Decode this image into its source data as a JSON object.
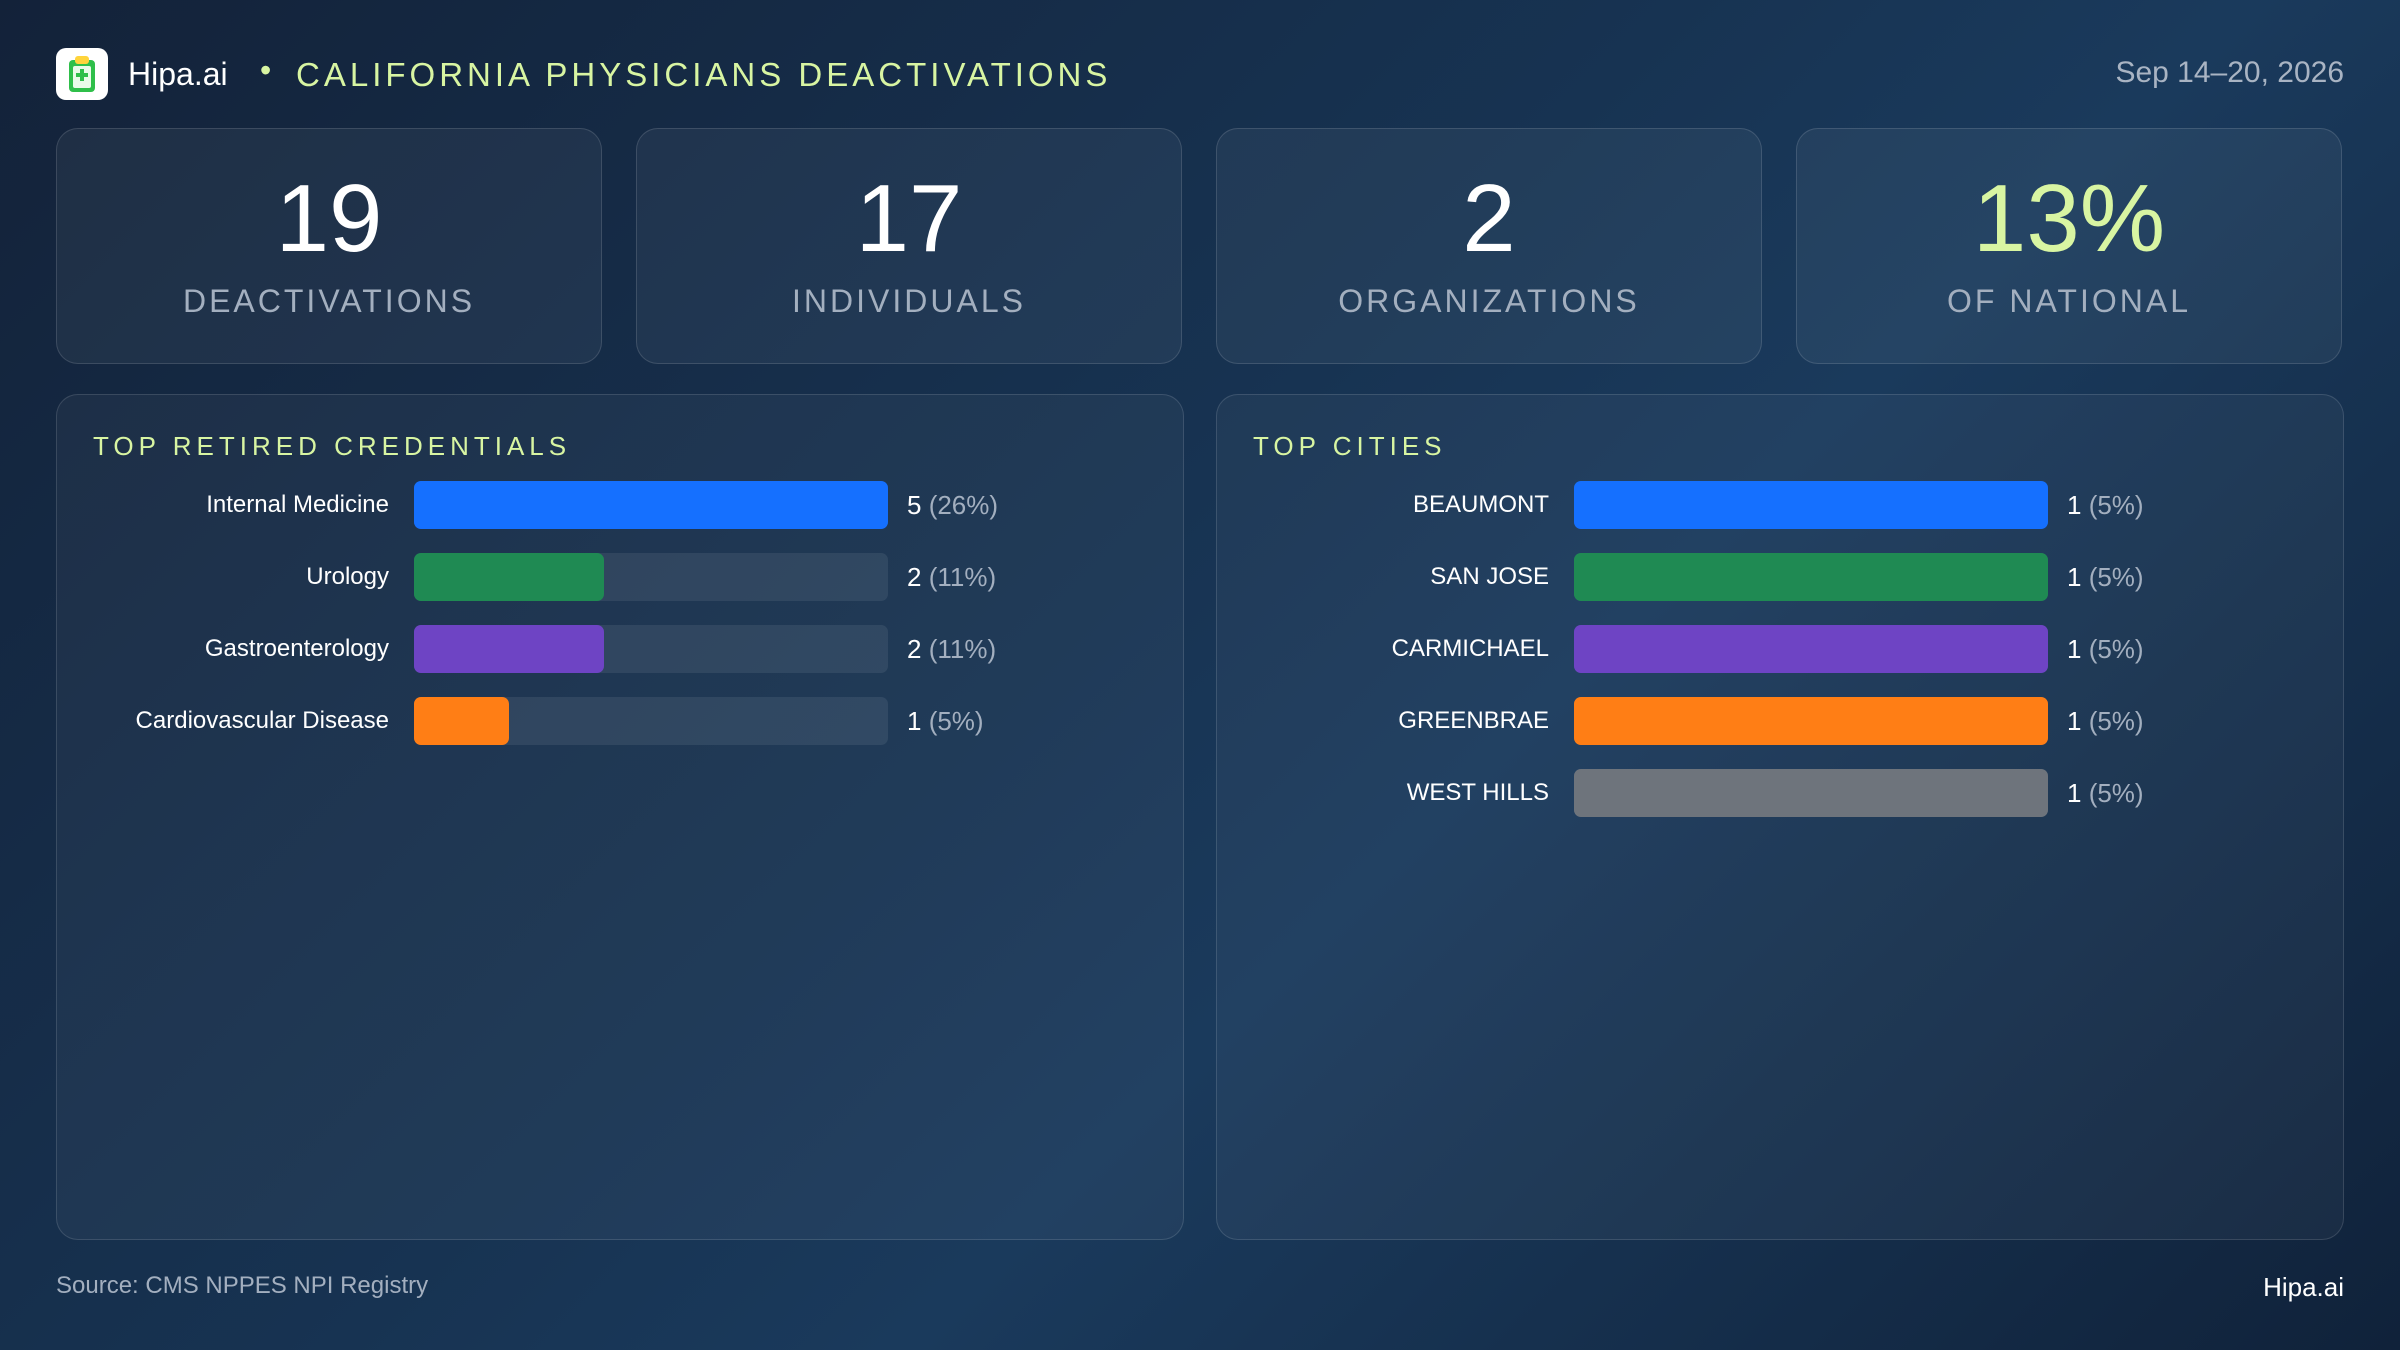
{
  "header": {
    "brand": "Hipa.ai",
    "separator": "•",
    "title": "CALIFORNIA PHYSICIANS DEACTIVATIONS",
    "date_range": "Sep 14–20, 2026",
    "logo_icon": "clipboard-medical-icon"
  },
  "kpis": [
    {
      "value": "19",
      "label": "DEACTIVATIONS"
    },
    {
      "value": "17",
      "label": "INDIVIDUALS"
    },
    {
      "value": "2",
      "label": "ORGANIZATIONS"
    },
    {
      "value": "13%",
      "label": "OF NATIONAL"
    }
  ],
  "colors": {
    "accent": "#d8f5a2",
    "blue": "#1570ff",
    "green": "#1f8a53",
    "purple": "#6e44c4",
    "orange": "#ff7e15",
    "gray": "#6e747c"
  },
  "chart_data": [
    {
      "type": "bar",
      "orientation": "horizontal",
      "title": "TOP RETIRED CREDENTIALS",
      "categories": [
        "Internal Medicine",
        "Urology",
        "Gastroenterology",
        "Cardiovascular  Disease"
      ],
      "values": [
        5,
        2,
        2,
        1
      ],
      "value_labels": [
        "5",
        "2",
        "2",
        "1"
      ],
      "percent_labels": [
        "(26%)",
        "(11%)",
        "(11%)",
        "(5%)"
      ],
      "colors": [
        "#1570ff",
        "#1f8a53",
        "#6e44c4",
        "#ff7e15"
      ],
      "xlim": [
        0,
        5
      ]
    },
    {
      "type": "bar",
      "orientation": "horizontal",
      "title": "TOP CITIES",
      "categories": [
        "BEAUMONT",
        "SAN JOSE",
        "CARMICHAEL",
        "GREENBRAE",
        "WEST HILLS"
      ],
      "values": [
        1,
        1,
        1,
        1,
        1
      ],
      "value_labels": [
        "1",
        "1",
        "1",
        "1",
        "1"
      ],
      "percent_labels": [
        "(5%)",
        "(5%)",
        "(5%)",
        "(5%)",
        "(5%)"
      ],
      "colors": [
        "#1570ff",
        "#1f8a53",
        "#6e44c4",
        "#ff7e15",
        "#6e747c"
      ],
      "xlim": [
        0,
        1
      ]
    }
  ],
  "footer": {
    "source": "Source: CMS NPPES NPI Registry",
    "brand": "Hipa.ai"
  }
}
